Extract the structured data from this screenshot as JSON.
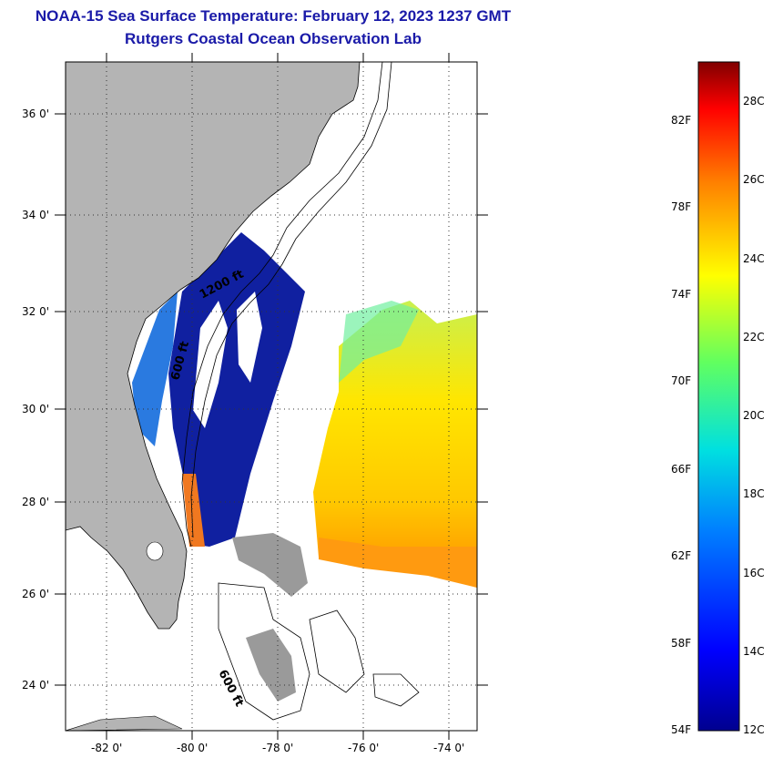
{
  "title": "NOAA-15 Sea Surface Temperature:  February 12, 2023 1237 GMT",
  "subtitle": "Rutgers Coastal Ocean Observation Lab",
  "latitude_labels": [
    "36 0'",
    "34 0'",
    "32 0'",
    "30 0'",
    "28 0'",
    "26 0'",
    "24 0'"
  ],
  "longitude_labels": [
    "-82 0'",
    "-80 0'",
    "-78 0'",
    "-76 0'",
    "-74 0'"
  ],
  "isobath_labels": [
    "1200 ft",
    "600 ft",
    "600 ft"
  ],
  "colorbar": {
    "fahrenheit": [
      "82F",
      "78F",
      "74F",
      "70F",
      "66F",
      "62F",
      "58F",
      "54F"
    ],
    "celsius": [
      "28C",
      "26C",
      "24C",
      "22C",
      "20C",
      "18C",
      "16C",
      "14C",
      "12C"
    ]
  },
  "colors": {
    "title": "#1a1aa8",
    "land": "#b4b4b4",
    "cold": "#00008f",
    "warm": "#ff8c00"
  }
}
